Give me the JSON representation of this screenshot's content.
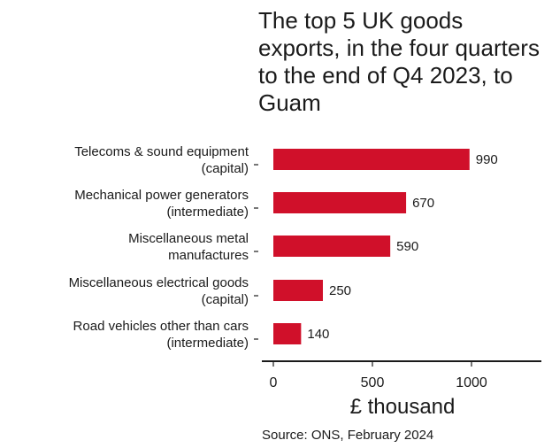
{
  "chart_data": {
    "type": "bar",
    "orientation": "horizontal",
    "title": "The top 5 UK goods exports, in the four quarters to the end of Q4 2023, to Guam",
    "categories": [
      [
        "Telecoms & sound equipment",
        "(capital)"
      ],
      [
        "Mechanical power generators",
        "(intermediate)"
      ],
      [
        "Miscellaneous metal",
        "manufactures"
      ],
      [
        "Miscellaneous electrical goods",
        "(capital)"
      ],
      [
        "Road vehicles other than cars",
        "(intermediate)"
      ]
    ],
    "values": [
      990,
      670,
      590,
      250,
      140
    ],
    "value_labels": [
      "990",
      "670",
      "590",
      "250",
      "140"
    ],
    "xlabel": "£ thousand",
    "xlim": [
      0,
      1350
    ],
    "xticks": [
      0,
      500,
      1000
    ],
    "xtick_labels": [
      "0",
      "500",
      "1000"
    ],
    "bar_color": "#d0102a",
    "source": "Source: ONS, February 2024"
  }
}
